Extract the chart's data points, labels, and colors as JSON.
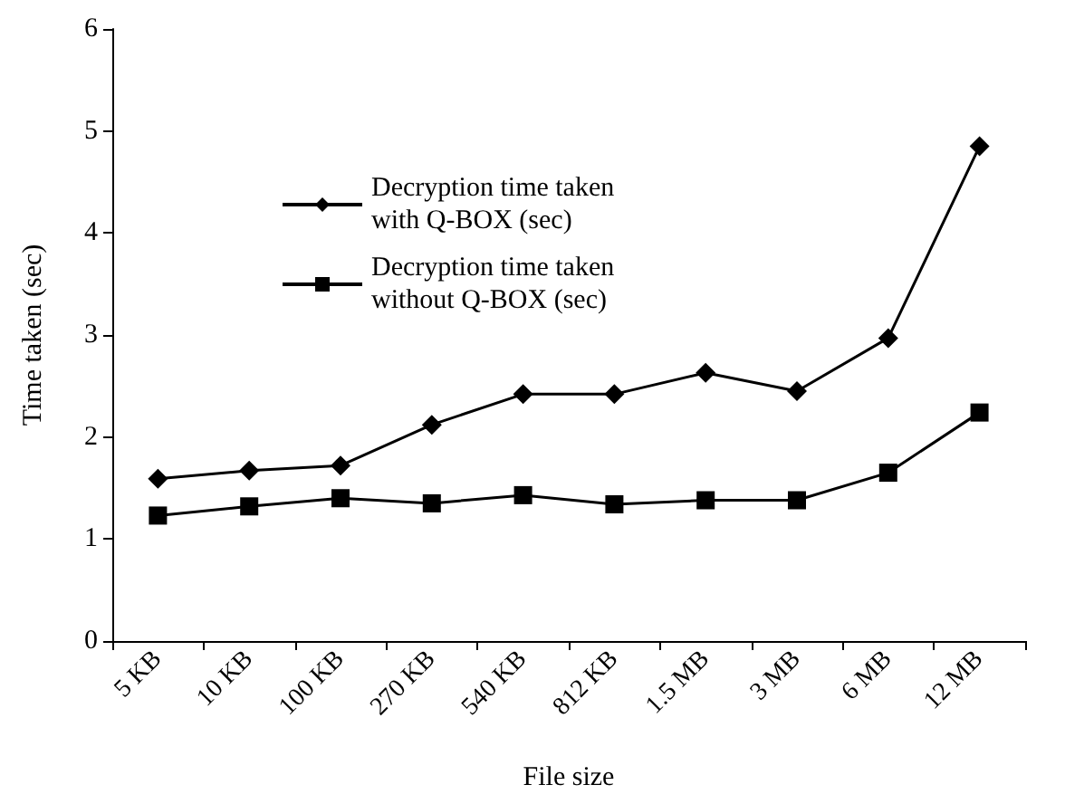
{
  "chart_data": {
    "type": "line",
    "xlabel": "File size",
    "ylabel": "Time taken (sec)",
    "categories": [
      "5 KB",
      "10 KB",
      "100 KB",
      "270 KB",
      "540 KB",
      "812 KB",
      "1.5 MB",
      "3 MB",
      "6 MB",
      "12 MB"
    ],
    "series": [
      {
        "name": "Decryption time taken\nwith Q-BOX (sec)",
        "color": "#000000",
        "marker": "diamond",
        "values": [
          1.59,
          1.67,
          1.72,
          2.12,
          2.42,
          2.42,
          2.63,
          2.45,
          2.97,
          4.85
        ]
      },
      {
        "name": "Decryption time taken\nwithout Q-BOX (sec)",
        "color": "#000000",
        "marker": "square",
        "values": [
          1.23,
          1.32,
          1.4,
          1.35,
          1.43,
          1.34,
          1.38,
          1.38,
          1.65,
          2.24
        ]
      }
    ],
    "ylim": [
      0,
      6
    ],
    "yticks": [
      0,
      1,
      2,
      3,
      4,
      5,
      6
    ],
    "grid": false,
    "legend": "top left",
    "line_style": "solid"
  }
}
